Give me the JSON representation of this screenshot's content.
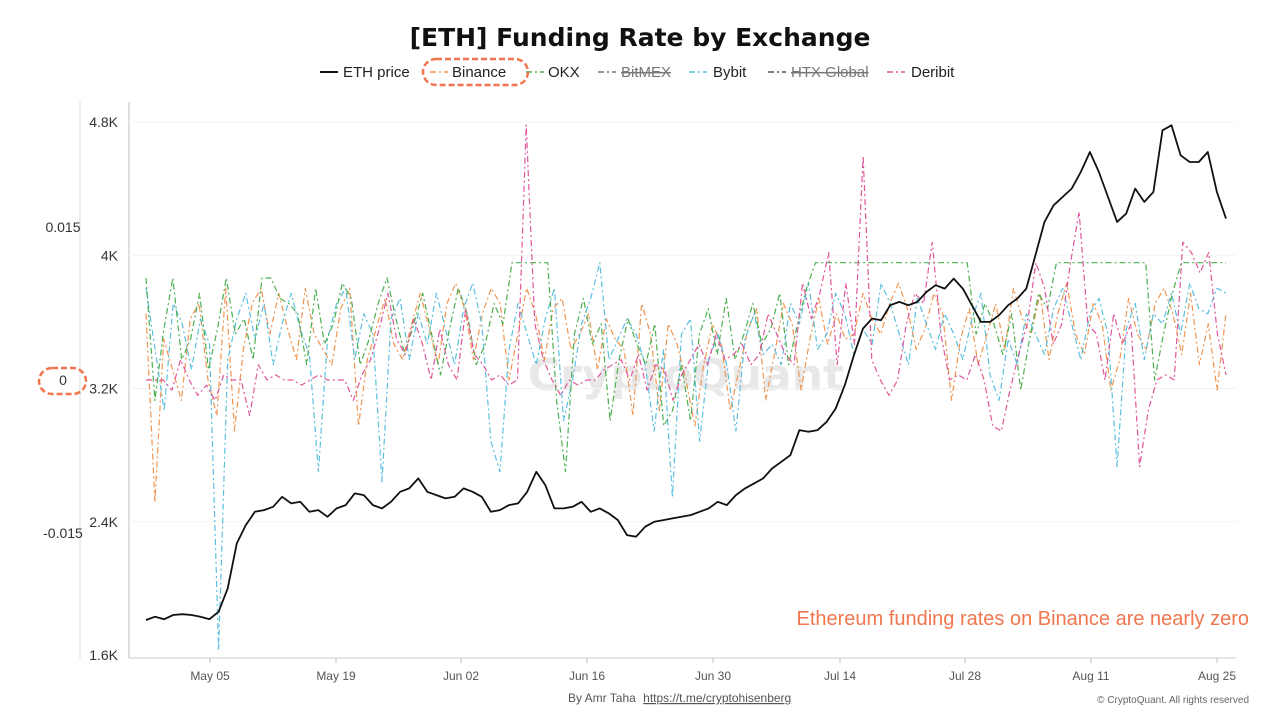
{
  "chart_data": {
    "type": "line",
    "title": "[ETH] Funding Rate by Exchange",
    "legend_position": "top-center",
    "x_ticks": [
      "May 05",
      "May 19",
      "Jun 02",
      "Jun 16",
      "Jun 30",
      "Jul 14",
      "Jul 28",
      "Aug 11",
      "Aug 25"
    ],
    "x_range": [
      "Apr 28",
      "Aug 28"
    ],
    "left_axis": {
      "ticks": [
        "0.015",
        "0",
        "-0.015"
      ],
      "range": [
        -0.03,
        0.03
      ]
    },
    "right_axis": {
      "ticks": [
        "4.8K",
        "4K",
        "3.2K",
        "2.4K",
        "1.6K"
      ],
      "range": [
        1600,
        4800
      ]
    },
    "grid": false,
    "series": [
      {
        "name": "ETH price",
        "axis": "right",
        "color": "#111111",
        "hidden": false,
        "values": [
          1810,
          1830,
          1815,
          1840,
          1845,
          1840,
          1830,
          1815,
          1860,
          2000,
          2270,
          2380,
          2460,
          2470,
          2490,
          2550,
          2510,
          2520,
          2460,
          2470,
          2430,
          2480,
          2500,
          2570,
          2560,
          2500,
          2480,
          2520,
          2580,
          2600,
          2660,
          2580,
          2560,
          2540,
          2550,
          2600,
          2580,
          2550,
          2460,
          2470,
          2500,
          2510,
          2580,
          2700,
          2620,
          2480,
          2480,
          2490,
          2520,
          2460,
          2480,
          2450,
          2410,
          2320,
          2310,
          2370,
          2400,
          2410,
          2420,
          2430,
          2440,
          2460,
          2480,
          2520,
          2500,
          2560,
          2600,
          2630,
          2660,
          2720,
          2760,
          2800,
          2950,
          2940,
          2950,
          3000,
          3080,
          3220,
          3400,
          3560,
          3620,
          3610,
          3700,
          3720,
          3700,
          3720,
          3780,
          3820,
          3800,
          3860,
          3800,
          3700,
          3600,
          3600,
          3640,
          3700,
          3740,
          3800,
          4000,
          4200,
          4300,
          4350,
          4400,
          4500,
          4620,
          4500,
          4350,
          4200,
          4250,
          4400,
          4320,
          4380,
          4750,
          4780,
          4600,
          4560,
          4560,
          4620,
          4380,
          4220
        ]
      },
      {
        "name": "Binance",
        "axis": "left",
        "color": "#f0954f",
        "hidden": false,
        "values": [
          0.0065,
          -0.012,
          0.004,
          0.001,
          -0.002,
          0.006,
          0.0075,
          0.0,
          -0.0035,
          0.009,
          -0.005,
          0.003,
          0.0075,
          0.009,
          0.0045,
          0.0085,
          0.005,
          0.002,
          0.009,
          0.0045,
          0.003,
          0.0015,
          0.007,
          0.009,
          -0.0045,
          0.002,
          0.005,
          0.008,
          0.0035,
          0.002,
          0.0055,
          0.0085,
          0.005,
          0.0015,
          0.0075,
          0.0095,
          0.007,
          0.002,
          0.0065,
          0.009,
          0.0075,
          0.0,
          0.0045,
          0.009,
          0.0065,
          0.002,
          0.007,
          0.008,
          0.003,
          0.0045,
          0.0065,
          0.001,
          0.006,
          0.004,
          0.003,
          -0.0035,
          0.0075,
          0.0045,
          -0.003,
          0.0055,
          0.0035,
          0.0,
          -0.0045,
          0.0015,
          0.0055,
          0.0035,
          -0.003,
          0.001,
          0.005,
          0.007,
          -0.002,
          0.0025,
          0.0075,
          0.0055,
          -0.001,
          0.004,
          0.008,
          0.0035,
          0.0065,
          0.004,
          0.0045,
          0.0085,
          0.006,
          0.0045,
          0.0075,
          0.0095,
          0.007,
          0.003,
          0.005,
          0.0085,
          0.0065,
          -0.002,
          0.004,
          0.007,
          0.0015,
          0.0045,
          0.0075,
          0.003,
          0.009,
          0.006,
          0.0045,
          0.0085,
          0.002,
          0.0065,
          0.0095,
          0.0045,
          0.0025,
          0.0075,
          0.0055,
          -0.001,
          0.002,
          0.008,
          0.0045,
          0.003,
          0.0075,
          0.009,
          0.0065,
          0.0025,
          0.0085,
          0.0015,
          0.0055,
          -0.001,
          0.0065
        ]
      },
      {
        "name": "OKX",
        "axis": "left",
        "color": "#4caf50",
        "hidden": false,
        "values": [
          0.01,
          -0.002,
          0.005,
          0.01,
          0.002,
          0.004,
          0.0085,
          0.001,
          0.005,
          0.01,
          0.0045,
          0.006,
          0.002,
          0.01,
          0.01,
          0.008,
          0.0075,
          0.0065,
          0.0015,
          0.009,
          0.0035,
          0.0055,
          0.0095,
          0.008,
          0.0015,
          0.004,
          0.0075,
          0.01,
          0.006,
          0.0025,
          0.0055,
          0.0085,
          0.0045,
          0.0005,
          0.005,
          0.009,
          0.0065,
          0.0015,
          0.0035,
          0.0075,
          0.0055,
          0.0115,
          0.0115,
          0.0115,
          0.0115,
          0.0115,
          -0.002,
          -0.009,
          0.0045,
          0.008,
          0.0035,
          0.0055,
          -0.004,
          0.002,
          0.006,
          0.0035,
          0.0015,
          0.0055,
          -0.0045,
          -0.003,
          0.0015,
          -0.004,
          0.0045,
          0.007,
          0.0025,
          0.008,
          0.002,
          0.0045,
          0.0075,
          0.0035,
          0.005,
          0.0085,
          0.0015,
          0.0055,
          0.009,
          0.0115,
          0.0115,
          0.0115,
          0.0115,
          0.0115,
          0.0115,
          0.0115,
          0.0115,
          0.0115,
          0.0115,
          0.0115,
          0.0115,
          0.0115,
          0.0115,
          0.0115,
          0.0115,
          0.0115,
          0.0115,
          0.0045,
          0.0075,
          0.0055,
          0.0025,
          0.0065,
          -0.001,
          0.004,
          0.0085,
          0.007,
          0.0115,
          0.0115,
          0.0115,
          0.0115,
          0.0115,
          0.0115,
          0.0115,
          0.0115,
          0.0115,
          0.0115,
          0.0115,
          0.0,
          0.0045,
          0.0085,
          0.0115,
          0.0115,
          0.0115,
          0.0115,
          0.0115,
          0.0115
        ]
      },
      {
        "name": "BitMEX",
        "axis": "left",
        "color": "#777777",
        "hidden": true,
        "values": []
      },
      {
        "name": "Bybit",
        "axis": "left",
        "color": "#5bc0de",
        "hidden": false,
        "values": [
          0.009,
          0.003,
          -0.003,
          0.0075,
          0.0055,
          0.001,
          0.006,
          0.0035,
          -0.0265,
          0.002,
          0.006,
          0.0085,
          0.004,
          0.0075,
          0.0015,
          0.0055,
          0.0085,
          0.005,
          0.0025,
          -0.009,
          0.004,
          0.0075,
          0.009,
          0.002,
          0.0065,
          0.0045,
          -0.01,
          0.006,
          0.008,
          0.002,
          0.0065,
          0.0035,
          0.0085,
          0.005,
          0.0015,
          0.007,
          0.0095,
          0.0055,
          -0.006,
          -0.009,
          0.003,
          0.0075,
          0.0045,
          0.0015,
          0.006,
          0.009,
          -0.004,
          0.0,
          0.0055,
          0.008,
          0.0115,
          0.002,
          0.004,
          0.006,
          0.0045,
          0.0015,
          -0.005,
          0.003,
          -0.0115,
          0.0045,
          0.006,
          -0.006,
          0.002,
          0.0045,
          0.0015,
          -0.005,
          0.004,
          0.0065,
          0.0025,
          0.0035,
          0.0015,
          0.0075,
          0.0055,
          0.0095,
          0.003,
          0.0045,
          0.0085,
          0.0065,
          0.0025,
          0.005,
          0.0035,
          0.0095,
          0.0075,
          0.0045,
          0.0015,
          0.008,
          0.0055,
          0.003,
          0.0065,
          0.0045,
          0.002,
          0.006,
          0.0085,
          0.0005,
          -0.002,
          0.004,
          0.0015,
          0.0065,
          0.0045,
          0.0025,
          0.007,
          0.009,
          0.0055,
          0.002,
          0.0065,
          0.008,
          0.0045,
          -0.0085,
          0.005,
          0.0075,
          0.002,
          0.0065,
          0.0055,
          0.0085,
          0.0045,
          0.0095,
          0.007,
          0.0065,
          0.009,
          0.0085
        ]
      },
      {
        "name": "HTX Global",
        "axis": "left",
        "color": "#555555",
        "hidden": true,
        "values": []
      },
      {
        "name": "Deribit",
        "axis": "left",
        "color": "#e0579b",
        "hidden": false,
        "values": [
          0.0,
          0.0,
          0.0,
          -0.001,
          0.002,
          0.0,
          -0.0015,
          -0.0005,
          -0.002,
          0.0005,
          0.0,
          0.0,
          -0.0035,
          0.0015,
          0.0,
          0.0005,
          0.0,
          0.0,
          -0.0005,
          0.0,
          0.0005,
          0.0,
          0.0,
          0.0,
          -0.002,
          0.0005,
          0.002,
          0.005,
          0.0085,
          0.004,
          0.0025,
          0.006,
          0.0035,
          0.0,
          0.005,
          0.0015,
          0.0,
          0.007,
          0.0025,
          0.0015,
          0.0,
          0.0005,
          -0.0005,
          0.0,
          0.025,
          0.0055,
          0.002,
          0.0,
          -0.0015,
          0.0,
          -0.0005,
          0.0,
          0.0,
          0.001,
          0.0015,
          0.002,
          0.0,
          0.0025,
          -0.001,
          0.0015,
          0.001,
          -0.002,
          0.0005,
          0.002,
          0.0035,
          0.0015,
          0.0045,
          0.002,
          0.0025,
          0.0035,
          0.0015,
          0.0025,
          0.0065,
          0.0045,
          0.0025,
          0.0015,
          0.0095,
          0.006,
          0.0085,
          0.0125,
          0.0015,
          0.0095,
          0.0035,
          0.022,
          0.002,
          0.0,
          -0.0015,
          0.0,
          0.0055,
          0.0085,
          0.0075,
          0.0135,
          0.0045,
          0.0,
          0.0005,
          0.0,
          0.0025,
          0.0,
          -0.0045,
          -0.005,
          -0.001,
          0.0025,
          0.0055,
          0.0115,
          0.009,
          0.0035,
          0.0055,
          0.0115,
          0.0165,
          0.0055,
          0.0045,
          0.0,
          0.0065,
          0.0035,
          0.0055,
          -0.0085,
          -0.003,
          0.0,
          0.0005,
          0.0,
          0.0135,
          0.0125,
          0.0105,
          0.0125,
          0.0045,
          0.0005
        ]
      }
    ],
    "annotation": "Ethereum funding rates on Binance are nearly zero"
  },
  "watermark": "CryptoQuant",
  "credit": {
    "prefix": "By Amr Taha",
    "link": "https://t.me/cryptohisenberg"
  },
  "copyright": "© CryptoQuant. All rights reserved",
  "colors": {
    "highlight": "#f0764f",
    "axis": "#cccccc"
  }
}
